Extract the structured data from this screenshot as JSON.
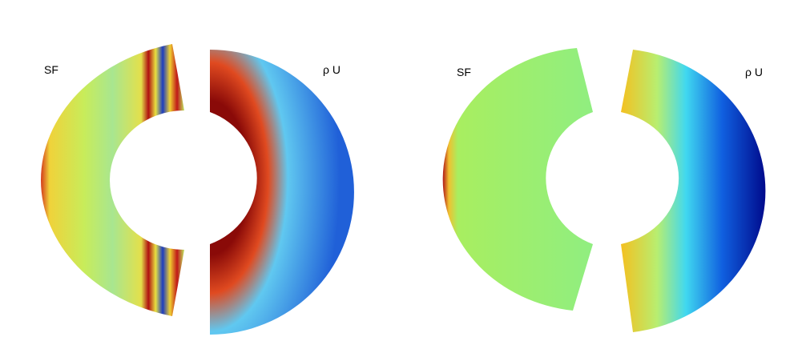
{
  "panels": [
    {
      "label": "SF"
    },
    {
      "label": "ρ U"
    },
    {
      "label": "SF"
    },
    {
      "label": "ρ U"
    }
  ]
}
